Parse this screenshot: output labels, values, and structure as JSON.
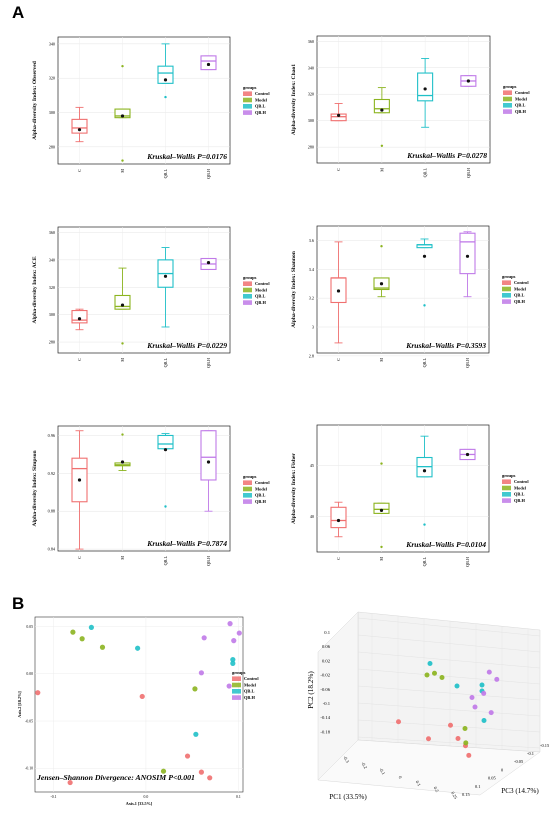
{
  "panel_letters": {
    "a": "A",
    "b": "B"
  },
  "legend": {
    "title": "groups",
    "groups": [
      {
        "key": "C",
        "name": "Control",
        "color": "#F07070"
      },
      {
        "key": "M",
        "name": "Model",
        "color": "#8CB420"
      },
      {
        "key": "QBL",
        "name": "QB.L",
        "color": "#20C0C8"
      },
      {
        "key": "QBH",
        "name": "QB.H",
        "color": "#C07AE8"
      }
    ]
  },
  "box_categories": [
    "C",
    "M",
    "QB.L",
    "QB.H"
  ],
  "chart_data": [
    {
      "type": "box",
      "ylabel": "Alpha-diversity Index: Observed",
      "annotation": "Kruskal–Wallis P=0.0176",
      "yticks": [
        280,
        300,
        320,
        340
      ],
      "ylim": [
        270,
        344
      ],
      "boxes": [
        {
          "min": 283,
          "q1": 288,
          "median": 291,
          "q3": 296,
          "max": 303,
          "mean": 290,
          "outliers": []
        },
        {
          "min": 297,
          "q1": 297,
          "median": 298,
          "q3": 302,
          "max": 302,
          "mean": 298,
          "outliers": [
            327,
            272
          ]
        },
        {
          "min": 317,
          "q1": 317,
          "median": 323,
          "q3": 327,
          "max": 340,
          "mean": 319,
          "outliers": [
            309
          ]
        },
        {
          "min": 325,
          "q1": 325,
          "median": 330,
          "q3": 333,
          "max": 333,
          "mean": 328,
          "outliers": []
        }
      ]
    },
    {
      "type": "box",
      "ylabel": "Alpha-diversity Index: Chao1",
      "annotation": "Kruskal–Wallis P=0.0278",
      "yticks": [
        280,
        300,
        320,
        340,
        360
      ],
      "ylim": [
        268,
        364
      ],
      "boxes": [
        {
          "min": 300,
          "q1": 300,
          "median": 303,
          "q3": 305,
          "max": 313,
          "mean": 304,
          "outliers": []
        },
        {
          "min": 306,
          "q1": 306,
          "median": 309,
          "q3": 316,
          "max": 325,
          "mean": 308,
          "outliers": [
            281
          ]
        },
        {
          "min": 295,
          "q1": 315,
          "median": 319,
          "q3": 336,
          "max": 347,
          "mean": 324,
          "outliers": []
        },
        {
          "min": 326,
          "q1": 326,
          "median": 330,
          "q3": 334,
          "max": 334,
          "mean": 330,
          "outliers": []
        }
      ]
    },
    {
      "type": "box",
      "ylabel": "Alpha-diversity Index: ACE",
      "annotation": "Kruskal–Wallis P=0.0229",
      "yticks": [
        280,
        300,
        320,
        340,
        360
      ],
      "ylim": [
        272,
        364
      ],
      "boxes": [
        {
          "min": 289,
          "q1": 294,
          "median": 296,
          "q3": 303,
          "max": 304,
          "mean": 297,
          "outliers": []
        },
        {
          "min": 304,
          "q1": 304,
          "median": 306,
          "q3": 314,
          "max": 334,
          "mean": 307,
          "outliers": [
            279
          ]
        },
        {
          "min": 291,
          "q1": 320,
          "median": 330,
          "q3": 340,
          "max": 349,
          "mean": 328,
          "outliers": []
        },
        {
          "min": 333,
          "q1": 333,
          "median": 337,
          "q3": 341,
          "max": 341,
          "mean": 338,
          "outliers": []
        }
      ]
    },
    {
      "type": "box",
      "ylabel": "Alpha-diversity Index: Shannon",
      "annotation": "Kruskal–Wallis P=0.3593",
      "yticks": [
        2.8,
        3.0,
        3.2,
        3.4,
        3.6
      ],
      "ylim": [
        2.82,
        3.7
      ],
      "boxes": [
        {
          "min": 2.89,
          "q1": 3.17,
          "median": 3.34,
          "q3": 3.34,
          "max": 3.59,
          "mean": 3.25,
          "outliers": []
        },
        {
          "min": 3.21,
          "q1": 3.26,
          "median": 3.27,
          "q3": 3.34,
          "max": 3.34,
          "mean": 3.3,
          "outliers": [
            3.56
          ]
        },
        {
          "min": 3.55,
          "q1": 3.55,
          "median": 3.57,
          "q3": 3.57,
          "max": 3.61,
          "mean": 3.49,
          "outliers": [
            3.15
          ]
        },
        {
          "min": 3.21,
          "q1": 3.37,
          "median": 3.59,
          "q3": 3.65,
          "max": 3.66,
          "mean": 3.49,
          "outliers": []
        }
      ]
    },
    {
      "type": "box",
      "ylabel": "Alpha-diversity Index: Simpson",
      "annotation": "Kruskal–Wallis P=0.7874",
      "yticks": [
        0.84,
        0.88,
        0.92,
        0.96
      ],
      "ylim": [
        0.838,
        0.97
      ],
      "boxes": [
        {
          "min": 0.84,
          "q1": 0.89,
          "median": 0.925,
          "q3": 0.936,
          "max": 0.965,
          "mean": 0.913,
          "outliers": []
        },
        {
          "min": 0.923,
          "q1": 0.928,
          "median": 0.929,
          "q3": 0.931,
          "max": 0.931,
          "mean": 0.932,
          "outliers": [
            0.961
          ]
        },
        {
          "min": 0.946,
          "q1": 0.946,
          "median": 0.951,
          "q3": 0.96,
          "max": 0.962,
          "mean": 0.945,
          "outliers": [
            0.885
          ]
        },
        {
          "min": 0.88,
          "q1": 0.913,
          "median": 0.937,
          "q3": 0.965,
          "max": 0.965,
          "mean": 0.932,
          "outliers": []
        }
      ]
    },
    {
      "type": "box",
      "ylabel": "Alpha-diversity Index: Fisher",
      "annotation": "Kruskal–Wallis P=0.0104",
      "yticks": [
        40,
        45
      ],
      "ylim": [
        36.5,
        49
      ],
      "boxes": [
        {
          "min": 38.0,
          "q1": 38.9,
          "median": 39.6,
          "q3": 40.9,
          "max": 41.4,
          "mean": 39.6,
          "outliers": []
        },
        {
          "min": 40.3,
          "q1": 40.3,
          "median": 40.7,
          "q3": 41.3,
          "max": 41.3,
          "mean": 40.6,
          "outliers": [
            45.2,
            37.0
          ]
        },
        {
          "min": 43.9,
          "q1": 43.9,
          "median": 44.9,
          "q3": 45.8,
          "max": 47.9,
          "mean": 44.5,
          "outliers": [
            39.2
          ]
        },
        {
          "min": 45.6,
          "q1": 45.6,
          "median": 46.1,
          "q3": 46.6,
          "max": 46.6,
          "mean": 46.1,
          "outliers": []
        }
      ]
    },
    {
      "type": "scatter",
      "xlabel": "Axis.1  [33.5%]",
      "ylabel": "Axis.2  [18.2%]",
      "annotation": "Jensen–Shannon Divergence: ANOSIM P<0.001",
      "xticks": [
        -0.1,
        0.0,
        0.1
      ],
      "xtick_labels": [
        "-0.1",
        "0.0",
        "0.1"
      ],
      "yticks": [
        -0.1,
        -0.05,
        0.0,
        0.05
      ],
      "ytick_labels": [
        "-0.10",
        "-0.05",
        "0.00",
        "0.05"
      ],
      "xlim": [
        -0.12,
        0.105
      ],
      "ylim": [
        -0.125,
        0.06
      ],
      "points": [
        {
          "group": "C",
          "x": -0.117,
          "y": -0.02
        },
        {
          "group": "C",
          "x": -0.082,
          "y": -0.115
        },
        {
          "group": "C",
          "x": -0.004,
          "y": -0.024
        },
        {
          "group": "C",
          "x": 0.045,
          "y": -0.087
        },
        {
          "group": "C",
          "x": 0.06,
          "y": -0.104
        },
        {
          "group": "C",
          "x": 0.069,
          "y": -0.11
        },
        {
          "group": "M",
          "x": -0.079,
          "y": 0.044
        },
        {
          "group": "M",
          "x": -0.069,
          "y": 0.037
        },
        {
          "group": "M",
          "x": -0.047,
          "y": 0.028
        },
        {
          "group": "M",
          "x": 0.053,
          "y": -0.016
        },
        {
          "group": "M",
          "x": 0.019,
          "y": -0.103
        },
        {
          "group": "QBL",
          "x": -0.059,
          "y": 0.049
        },
        {
          "group": "QBL",
          "x": -0.009,
          "y": 0.027
        },
        {
          "group": "QBL",
          "x": 0.094,
          "y": 0.015
        },
        {
          "group": "QBL",
          "x": 0.094,
          "y": 0.011
        },
        {
          "group": "QBL",
          "x": 0.054,
          "y": -0.064
        },
        {
          "group": "QBH",
          "x": 0.091,
          "y": 0.053
        },
        {
          "group": "QBH",
          "x": 0.101,
          "y": 0.043
        },
        {
          "group": "QBH",
          "x": 0.095,
          "y": 0.035
        },
        {
          "group": "QBH",
          "x": 0.063,
          "y": 0.038
        },
        {
          "group": "QBH",
          "x": 0.06,
          "y": 0.001
        },
        {
          "group": "QBH",
          "x": 0.09,
          "y": -0.013
        }
      ]
    },
    {
      "type": "scatter3d",
      "axis_labels": {
        "x": "PC1 (33.5%)",
        "y": "PC2 (18.2%)",
        "z": "PC3 (14.7%)"
      },
      "pc1_ticks": [
        "-0.3",
        "-0.2",
        "-0.1",
        "0",
        "0.1",
        "0.2",
        "0.25"
      ],
      "pc2_ticks": [
        "0.1",
        "0.06",
        "0.02",
        "-0.02",
        "-0.06",
        "-0.1",
        "-0.14",
        "-0.18"
      ],
      "pc3_ticks": [
        "0.15",
        "0.1",
        "0.05",
        "0",
        "-0.05",
        "-0.1",
        "-0.15"
      ],
      "points": [
        {
          "group": "C",
          "pc1": -0.25,
          "pc2": -0.06,
          "pc3": 0.1
        },
        {
          "group": "C",
          "pc1": -0.05,
          "pc2": -0.1,
          "pc3": 0.1
        },
        {
          "group": "C",
          "pc1": 0.05,
          "pc2": -0.06,
          "pc3": 0.05
        },
        {
          "group": "C",
          "pc1": 0.1,
          "pc2": -0.1,
          "pc3": 0.05
        },
        {
          "group": "C",
          "pc1": 0.15,
          "pc2": -0.12,
          "pc3": 0.05
        },
        {
          "group": "C",
          "pc1": 0.2,
          "pc2": -0.14,
          "pc3": 0.08
        },
        {
          "group": "M",
          "pc1": -0.2,
          "pc2": 0.06,
          "pc3": -0.05
        },
        {
          "group": "M",
          "pc1": -0.15,
          "pc2": 0.07,
          "pc3": -0.05
        },
        {
          "group": "M",
          "pc1": -0.1,
          "pc2": 0.06,
          "pc3": -0.05
        },
        {
          "group": "M",
          "pc1": 0.1,
          "pc2": -0.08,
          "pc3": 0.0
        },
        {
          "group": "M",
          "pc1": 0.18,
          "pc2": -0.1,
          "pc3": 0.08
        },
        {
          "group": "QBL",
          "pc1": -0.18,
          "pc2": 0.1,
          "pc3": -0.05
        },
        {
          "group": "QBL",
          "pc1": 0.0,
          "pc2": 0.04,
          "pc3": -0.05
        },
        {
          "group": "QBL",
          "pc1": 0.12,
          "pc2": 0.04,
          "pc3": -0.1
        },
        {
          "group": "QBL",
          "pc1": 0.12,
          "pc2": 0.02,
          "pc3": -0.1
        },
        {
          "group": "QBL",
          "pc1": 0.18,
          "pc2": -0.06,
          "pc3": -0.05
        },
        {
          "group": "QBH",
          "pc1": 0.15,
          "pc2": 0.08,
          "pc3": -0.12
        },
        {
          "group": "QBH",
          "pc1": 0.2,
          "pc2": 0.06,
          "pc3": -0.12
        },
        {
          "group": "QBH",
          "pc1": 0.15,
          "pc2": 0.02,
          "pc3": -0.08
        },
        {
          "group": "QBH",
          "pc1": 0.1,
          "pc2": 0.01,
          "pc3": -0.05
        },
        {
          "group": "QBH",
          "pc1": 0.12,
          "pc2": -0.02,
          "pc3": -0.05
        },
        {
          "group": "QBH",
          "pc1": 0.2,
          "pc2": -0.04,
          "pc3": -0.08
        }
      ]
    }
  ]
}
